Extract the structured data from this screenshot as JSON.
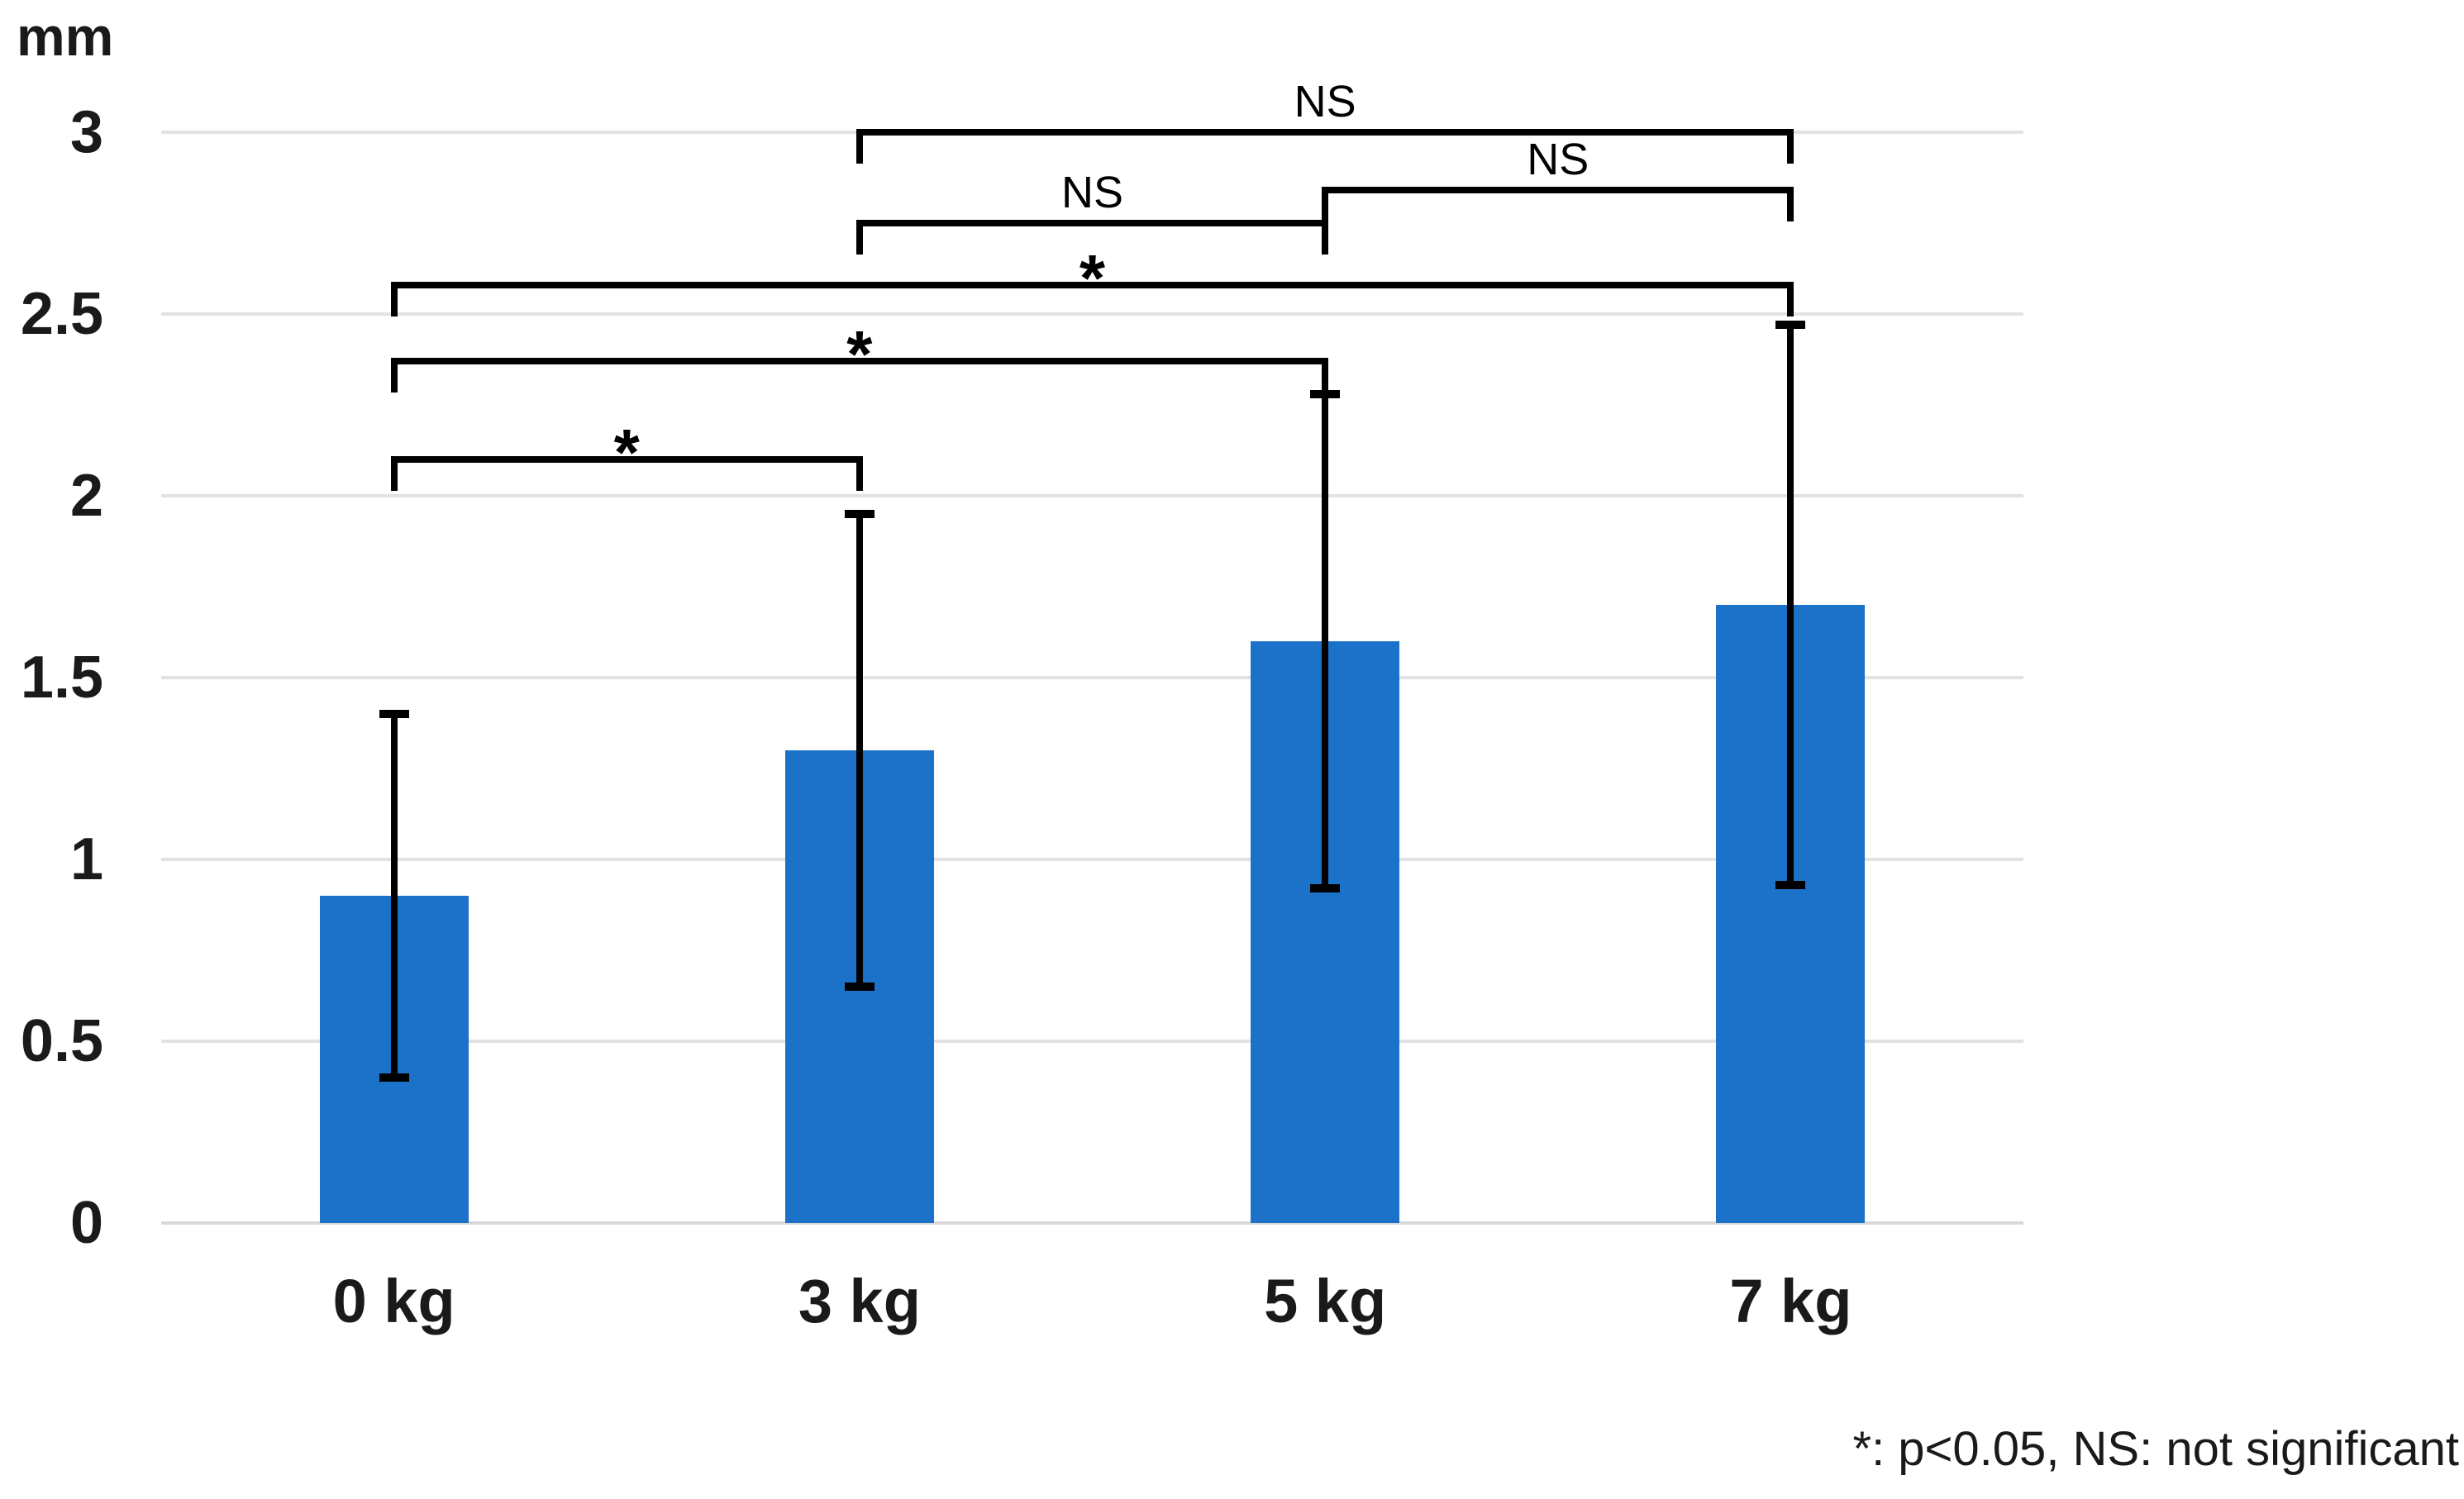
{
  "accent_color": "#1b72c8",
  "grid_color": "#e2e2e2",
  "line_color": "#000000",
  "chart_data": {
    "type": "bar",
    "title": "",
    "ylabel": "mm",
    "xlabel": "",
    "categories": [
      "0 kg",
      "3 kg",
      "5 kg",
      "7 kg"
    ],
    "values": [
      0.9,
      1.3,
      1.6,
      1.7
    ],
    "error_upper": [
      1.4,
      1.95,
      2.28,
      2.47
    ],
    "error_lower": [
      0.4,
      0.65,
      0.92,
      0.93
    ],
    "yticks": [
      "0",
      "0.5",
      "1",
      "1.5",
      "2",
      "2.5",
      "3"
    ],
    "ytick_values": [
      0,
      0.5,
      1,
      1.5,
      2,
      2.5,
      3
    ],
    "ylim": [
      0,
      3
    ],
    "grid": true,
    "legend": false,
    "bar_color": "#1b72c8",
    "significance_brackets": [
      {
        "between": [
          "0 kg",
          "3 kg"
        ],
        "label": "*",
        "y_value": 2.1
      },
      {
        "between": [
          "0 kg",
          "5 kg"
        ],
        "label": "*",
        "y_value": 2.37
      },
      {
        "between": [
          "0 kg",
          "7 kg"
        ],
        "label": "*",
        "y_value": 2.58
      },
      {
        "between": [
          "3 kg",
          "5 kg"
        ],
        "label": "NS",
        "y_value": 2.75
      },
      {
        "between": [
          "5 kg",
          "7 kg"
        ],
        "label": "NS",
        "y_value": 2.84
      },
      {
        "between": [
          "3 kg",
          "7 kg"
        ],
        "label": "NS",
        "y_value": 3.0
      }
    ],
    "footnote": "*: p<0.05, NS: not significant"
  }
}
